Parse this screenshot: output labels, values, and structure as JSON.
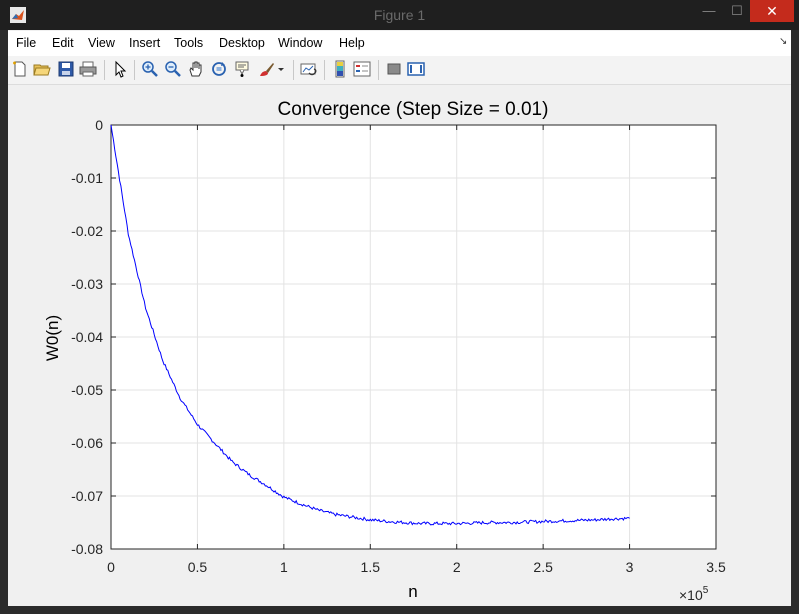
{
  "window": {
    "title": "Figure 1",
    "close_glyph": "✕",
    "minimize_glyph": "—",
    "maximize_glyph": "☐"
  },
  "menu": {
    "items": [
      "File",
      "Edit",
      "View",
      "Insert",
      "Tools",
      "Desktop",
      "Window",
      "Help"
    ],
    "dock_glyph": "↘"
  },
  "toolbar": {
    "tools": [
      "new-figure",
      "open-file",
      "save",
      "print",
      "select-arrow",
      "zoom-in",
      "zoom-out",
      "pan",
      "rotate-3d",
      "data-cursor",
      "brush",
      "link-plot",
      "insert-colorbar",
      "insert-legend",
      "hide-plot-tools",
      "show-plot-tools"
    ]
  },
  "chart_data": {
    "type": "line",
    "title": "Convergence (Step Size = 0.01)",
    "xlabel": "n",
    "ylabel": "W0(n)",
    "xlim": [
      0,
      350000
    ],
    "ylim": [
      -0.08,
      0
    ],
    "x_exponent_label": "×10",
    "x_exponent": "5",
    "xticks": [
      0,
      0.5,
      1,
      1.5,
      2,
      2.5,
      3,
      3.5
    ],
    "xtick_labels": [
      "0",
      "0.5",
      "1",
      "1.5",
      "2",
      "2.5",
      "3",
      "3.5"
    ],
    "yticks": [
      0,
      -0.01,
      -0.02,
      -0.03,
      -0.04,
      -0.05,
      -0.06,
      -0.07,
      -0.08
    ],
    "ytick_labels": [
      "0",
      "-0.01",
      "-0.02",
      "-0.03",
      "-0.04",
      "-0.05",
      "-0.06",
      "-0.07",
      "-0.08"
    ],
    "grid": true,
    "line_color": "#0000ff",
    "series": [
      {
        "x": [
          0,
          10000,
          20000,
          30000,
          40000,
          50000,
          60000,
          70000,
          80000,
          90000,
          100000,
          110000,
          120000,
          130000,
          140000,
          150000,
          160000,
          170000,
          180000,
          190000,
          200000,
          210000,
          220000,
          230000,
          240000,
          250000,
          260000,
          270000,
          280000,
          290000,
          300000
        ],
        "y": [
          0,
          -0.0205,
          -0.0345,
          -0.0445,
          -0.0515,
          -0.0565,
          -0.06,
          -0.0635,
          -0.066,
          -0.068,
          -0.0702,
          -0.0715,
          -0.0727,
          -0.0735,
          -0.074,
          -0.0745,
          -0.0748,
          -0.075,
          -0.0752,
          -0.0752,
          -0.0752,
          -0.0751,
          -0.075,
          -0.075,
          -0.0749,
          -0.0748,
          -0.0747,
          -0.0746,
          -0.0745,
          -0.0743,
          -0.0742
        ]
      }
    ]
  }
}
